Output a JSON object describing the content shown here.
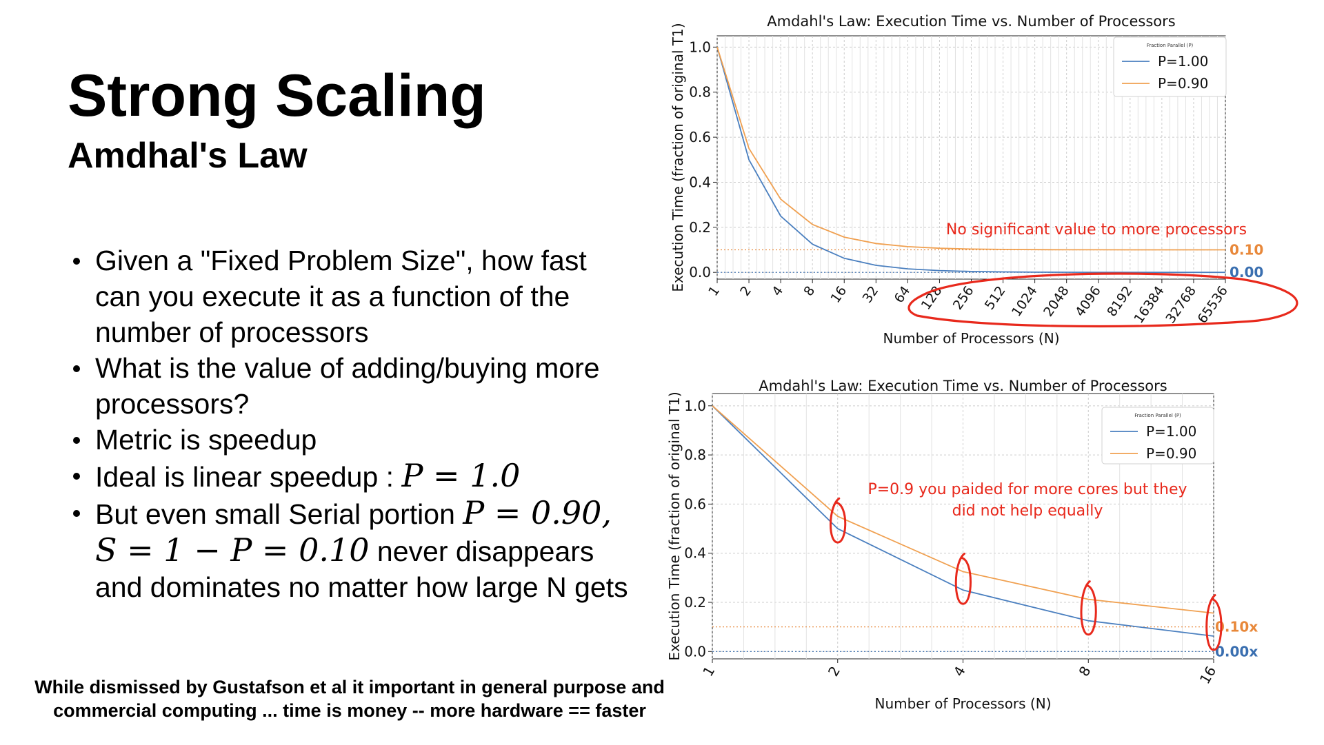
{
  "slide": {
    "title": "Strong Scaling",
    "subtitle": "Amdhal's Law",
    "bullets": [
      {
        "text": "Given a \"Fixed Problem Size\", how fast can you execute it as a function of the number of processors"
      },
      {
        "text": "What is the value of adding/buying more processors?"
      },
      {
        "text": "Metric is speedup"
      },
      {
        "text": "Ideal is linear speedup : ",
        "math": "P = 1.0"
      },
      {
        "text": "But even small Serial portion ",
        "math": "P = 0.90, S = 1 − P = 0.10",
        "text_after": " never disappears and dominates no matter how large N gets"
      }
    ],
    "footnote": "While dismissed by Gustafson et al it important in general purpose and commercial computing ... time is money -- more hardware == faster"
  },
  "chart_data": [
    {
      "type": "line",
      "title": "Amdahl's Law: Execution Time vs. Number of Processors",
      "xlabel": "Number of Processors (N)",
      "ylabel": "Execution Time (fraction of original T1)",
      "x_scale": "log2",
      "x": [
        1,
        2,
        4,
        8,
        16,
        32,
        64,
        128,
        256,
        512,
        1024,
        2048,
        4096,
        8192,
        16384,
        32768,
        65536
      ],
      "x_tick_labels": [
        "1",
        "2",
        "4",
        "8",
        "16",
        "32",
        "64",
        "128",
        "256",
        "512",
        "1024",
        "2048",
        "4096",
        "8192",
        "16384",
        "32768",
        "65536"
      ],
      "ylim": [
        -0.03,
        1.05
      ],
      "y_ticks": [
        "0.0",
        "0.2",
        "0.4",
        "0.6",
        "0.8",
        "1.0"
      ],
      "grid": true,
      "legend": {
        "title": "Fraction Parallel (P)",
        "placement": "top-right"
      },
      "series": [
        {
          "name": "P=1.00",
          "color": "#4a7fbf",
          "values": [
            1.0,
            0.5,
            0.25,
            0.125,
            0.0625,
            0.0313,
            0.0156,
            0.0078,
            0.0039,
            0.002,
            0.001,
            0.0005,
            0.0002,
            0.0001,
            0.0001,
            0.0,
            0.0
          ]
        },
        {
          "name": "P=0.90",
          "color": "#f0a050",
          "values": [
            1.0,
            0.55,
            0.325,
            0.2125,
            0.1563,
            0.1281,
            0.1141,
            0.107,
            0.1035,
            0.1018,
            0.1009,
            0.1004,
            0.1002,
            0.1001,
            0.1001,
            0.1,
            0.1
          ]
        }
      ],
      "reference_lines": [
        {
          "y": 0.1,
          "label": "0.10",
          "color": "#e8883a"
        },
        {
          "y": 0.0,
          "label": "0.00",
          "color": "#3a6fb0"
        }
      ],
      "annotation": "No significant value to more processors"
    },
    {
      "type": "line",
      "title": "Amdahl's Law: Execution Time vs. Number of Processors",
      "xlabel": "Number of Processors (N)",
      "ylabel": "Execution Time (fraction of original T1)",
      "x_scale": "log2",
      "x": [
        1,
        2,
        4,
        8,
        16
      ],
      "x_tick_labels": [
        "1",
        "2",
        "4",
        "8",
        "16"
      ],
      "ylim": [
        -0.03,
        1.05
      ],
      "y_ticks": [
        "0.0",
        "0.2",
        "0.4",
        "0.6",
        "0.8",
        "1.0"
      ],
      "grid": true,
      "legend": {
        "title": "Fraction Parallel (P)",
        "placement": "top-right"
      },
      "series": [
        {
          "name": "P=1.00",
          "color": "#4a7fbf",
          "values": [
            1.0,
            0.5,
            0.25,
            0.125,
            0.0625
          ]
        },
        {
          "name": "P=0.90",
          "color": "#f0a050",
          "values": [
            1.0,
            0.55,
            0.325,
            0.2125,
            0.1563
          ]
        }
      ],
      "reference_lines": [
        {
          "y": 0.1,
          "label": "0.10x",
          "color": "#e8883a"
        },
        {
          "y": 0.0,
          "label": "0.00x",
          "color": "#3a6fb0"
        }
      ],
      "annotation": [
        "P=0.9 you paided for more cores but they",
        "did not help equally"
      ]
    }
  ],
  "colors": {
    "annotation": "#e8291c",
    "grid": "#cccccc",
    "refline_orange": "#e8883a",
    "refline_blue": "#3a6fb0"
  }
}
